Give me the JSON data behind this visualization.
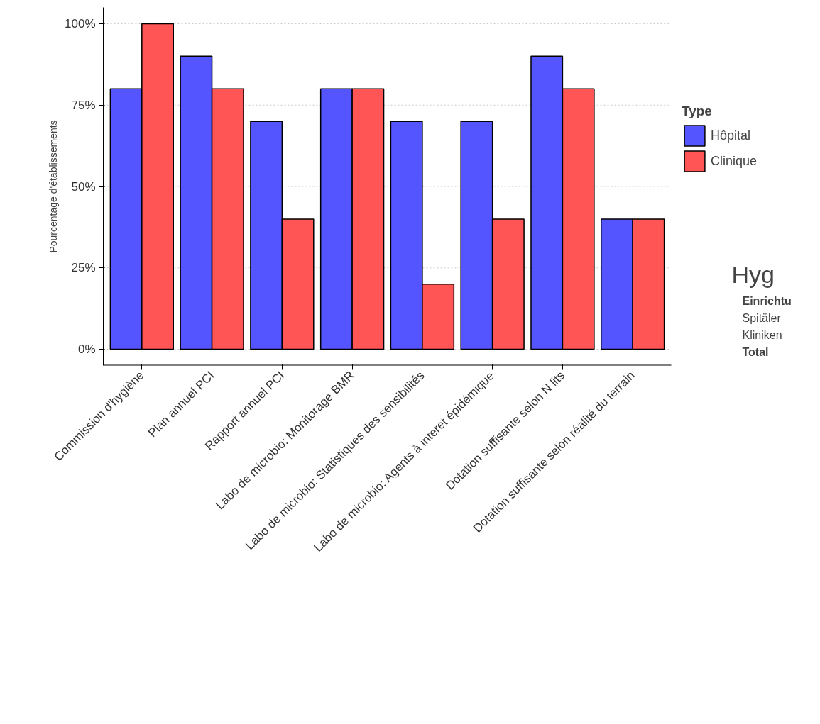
{
  "chart_data": {
    "type": "bar",
    "ylabel": "Pourcentage d'établissements",
    "legend_title": "Type",
    "categories": [
      "Commission d'hygiène",
      "Plan annuel PCI",
      "Rapport annuel PCI",
      "Labo de microbio: Monitorage BMR",
      "Labo de microbio: Statistiques des sensibilités",
      "Labo de microbio: Agents à interet épidémique",
      "Dotation suffisante selon N lits",
      "Dotation suffisante selon réalité du terrain"
    ],
    "series": [
      {
        "name": "Hôpital",
        "color": "#5555ff",
        "values": [
          80,
          90,
          70,
          80,
          70,
          70,
          90,
          40
        ]
      },
      {
        "name": "Clinique",
        "color": "#ff5555",
        "values": [
          100,
          80,
          40,
          80,
          20,
          40,
          80,
          40
        ]
      }
    ],
    "ylim": [
      -5,
      105
    ],
    "yticks": [
      {
        "value": 0,
        "label": "0%"
      },
      {
        "value": 25,
        "label": "25%"
      },
      {
        "value": 50,
        "label": "50%"
      },
      {
        "value": 75,
        "label": "75%"
      },
      {
        "value": 100,
        "label": "100%"
      }
    ],
    "grid": "y",
    "legend": "right",
    "annotations": [
      "Hyg",
      "Einrichtu",
      "Spitäler",
      "Kliniken",
      "Total"
    ]
  }
}
